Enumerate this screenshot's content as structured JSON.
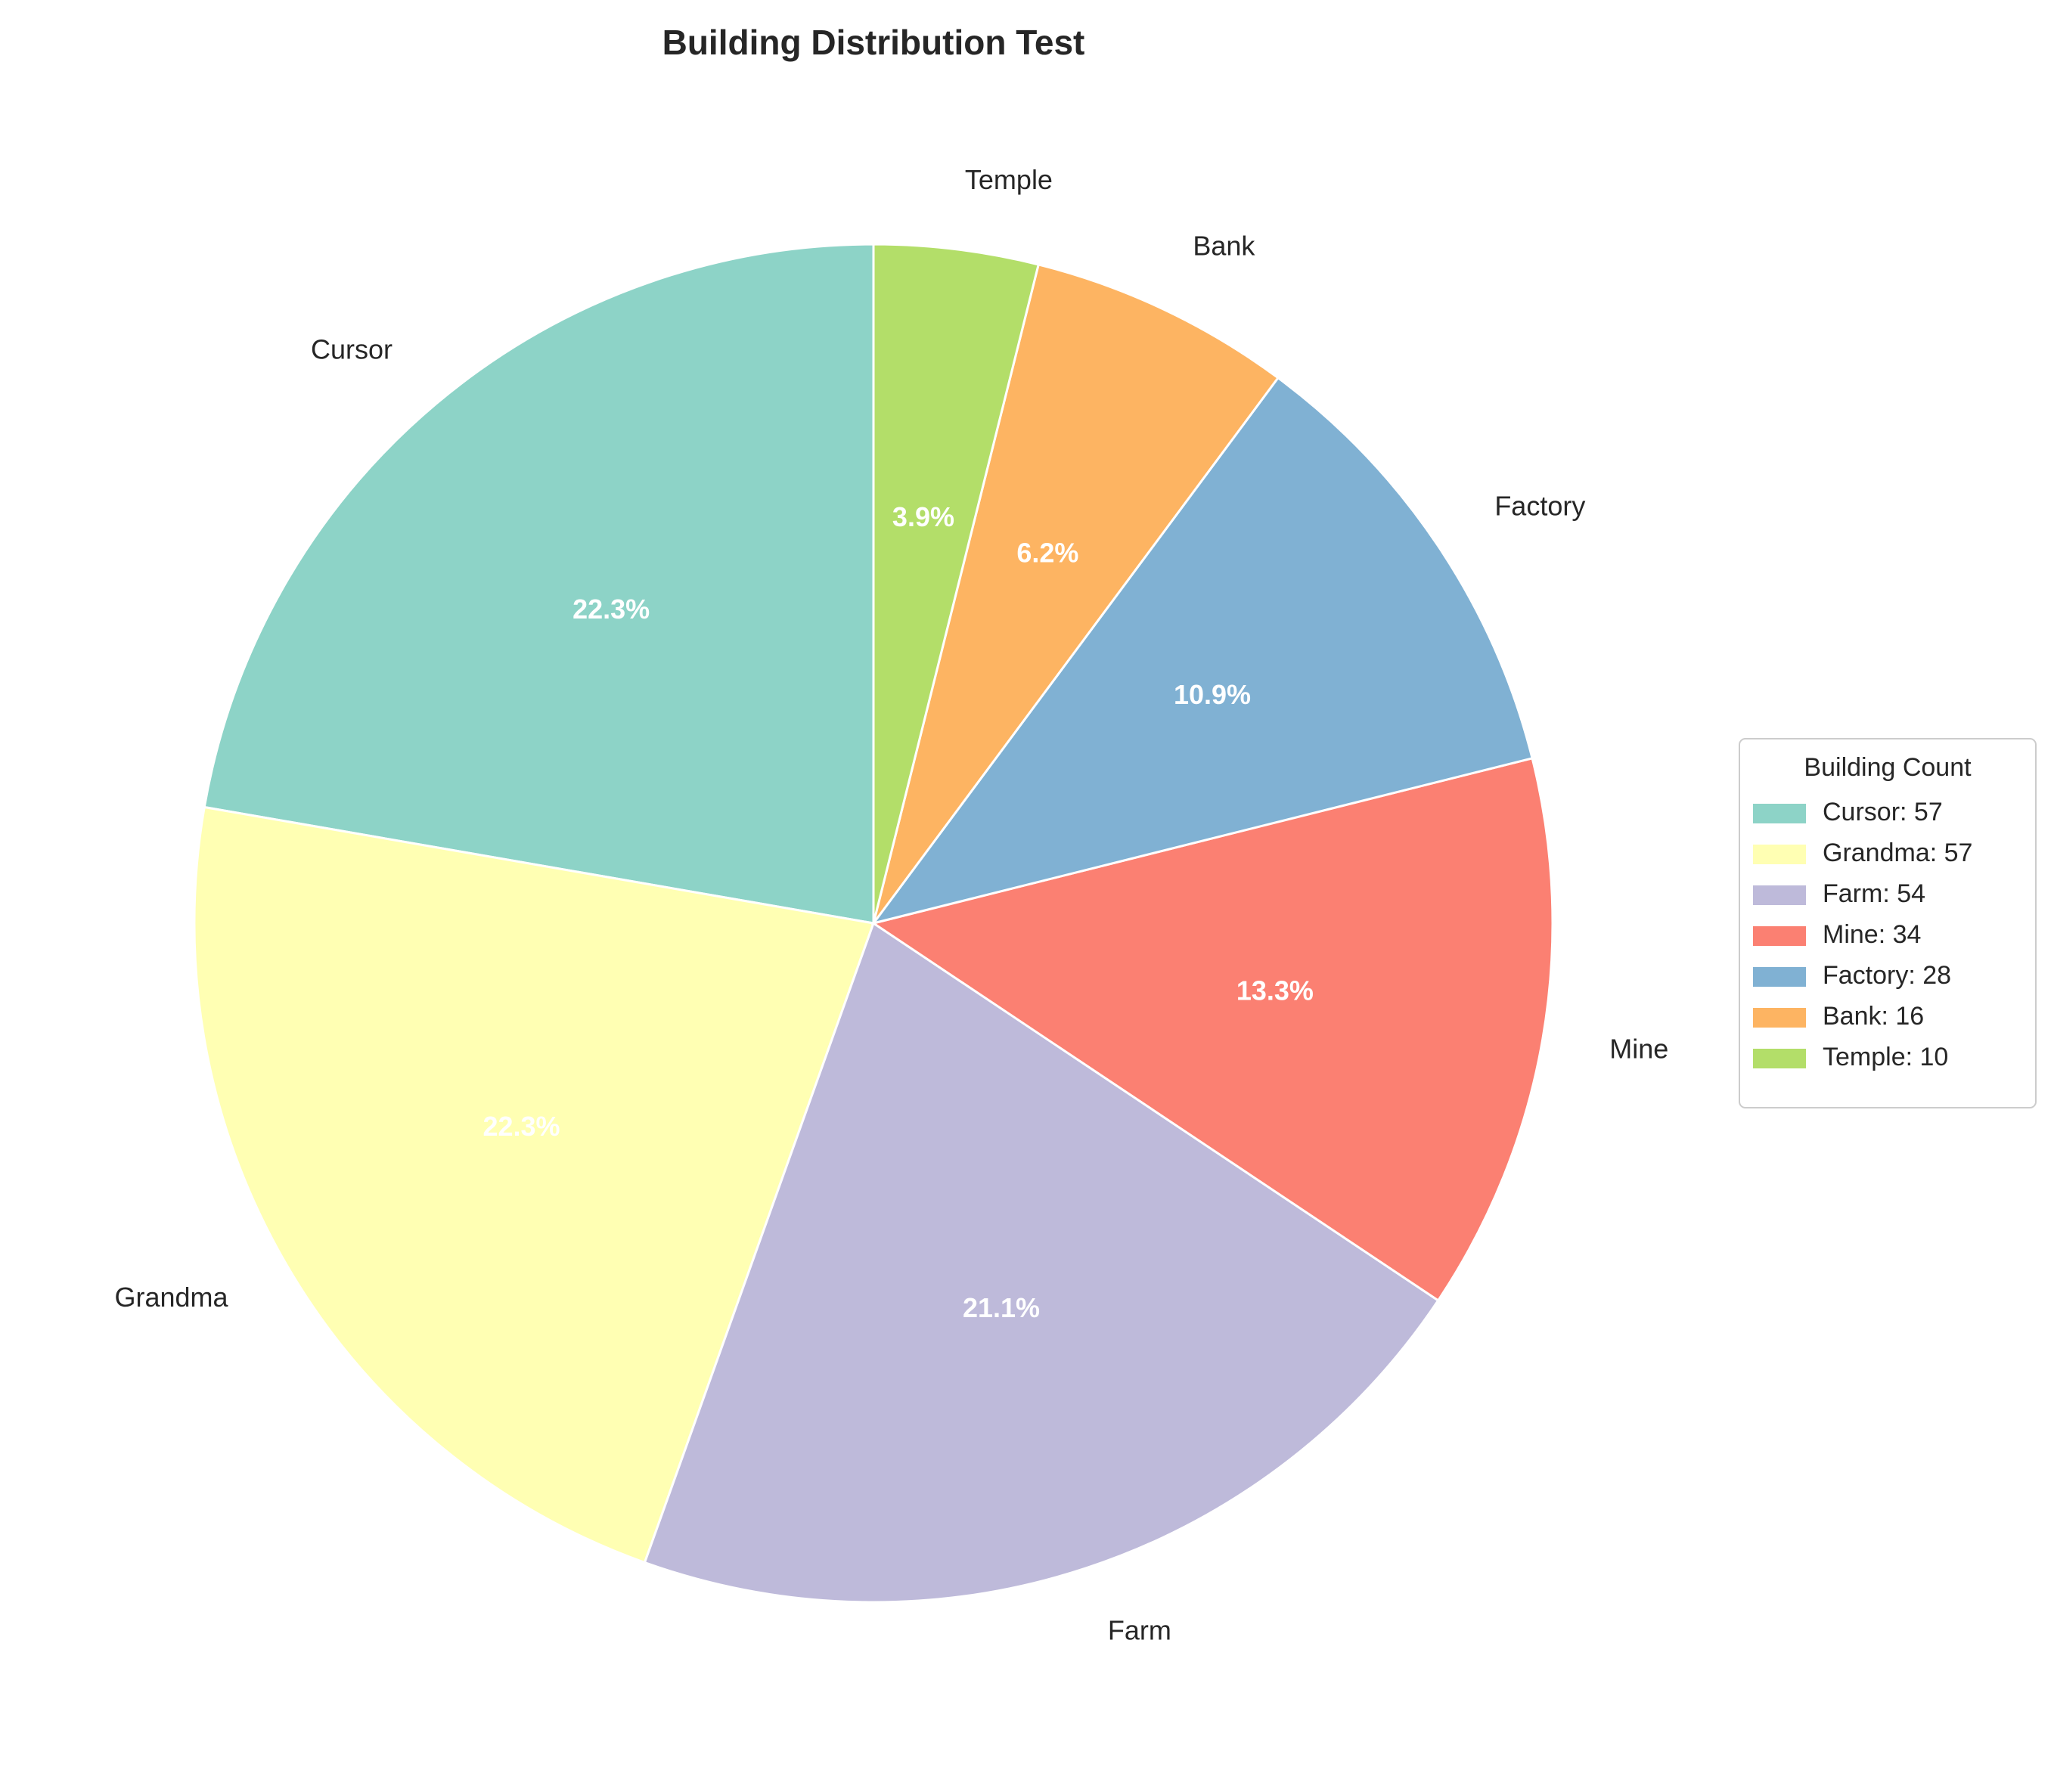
{
  "chart_data": {
    "type": "pie",
    "title": "Building Distribution Test",
    "categories": [
      "Cursor",
      "Grandma",
      "Farm",
      "Mine",
      "Factory",
      "Bank",
      "Temple"
    ],
    "values": [
      57,
      57,
      54,
      34,
      28,
      16,
      10
    ],
    "percent_labels": [
      "22.3%",
      "22.3%",
      "21.1%",
      "13.3%",
      "10.9%",
      "6.2%",
      "3.9%"
    ],
    "colors": [
      "#8dd3c7",
      "#ffffb3",
      "#bebada",
      "#fb8072",
      "#80b1d3",
      "#fdb462",
      "#b3de69"
    ],
    "start_angle_deg": 90,
    "direction": "counterclockwise",
    "legend": {
      "title": "Building Count",
      "entries": [
        "Cursor: 57",
        "Grandma: 57",
        "Farm: 54",
        "Mine: 34",
        "Factory: 28",
        "Bank: 16",
        "Temple: 10"
      ],
      "placement": "center-right"
    }
  }
}
